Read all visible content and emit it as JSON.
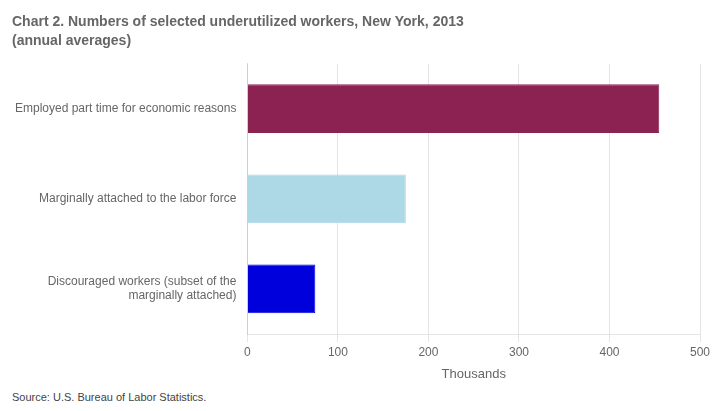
{
  "chart_data": {
    "type": "bar",
    "orientation": "horizontal",
    "title": "Chart 2. Numbers of selected underutilized workers, New York, 2013",
    "subtitle": "(annual averages)",
    "categories": [
      "Discouraged workers (subset of the\nmarginally attached)",
      "Marginally attached to the labor force",
      "Employed part time for economic reasons"
    ],
    "values": [
      75,
      175,
      455
    ],
    "colors": [
      "#0000DD",
      "#ADD8E6",
      "#8B2252"
    ],
    "xlabel": "Thousands",
    "xlim": [
      0,
      500
    ],
    "xticks": [
      0,
      100,
      200,
      300,
      400,
      500
    ],
    "grid": true,
    "annotations": [
      "Source: U.S. Bureau of Labor Statistics."
    ]
  }
}
